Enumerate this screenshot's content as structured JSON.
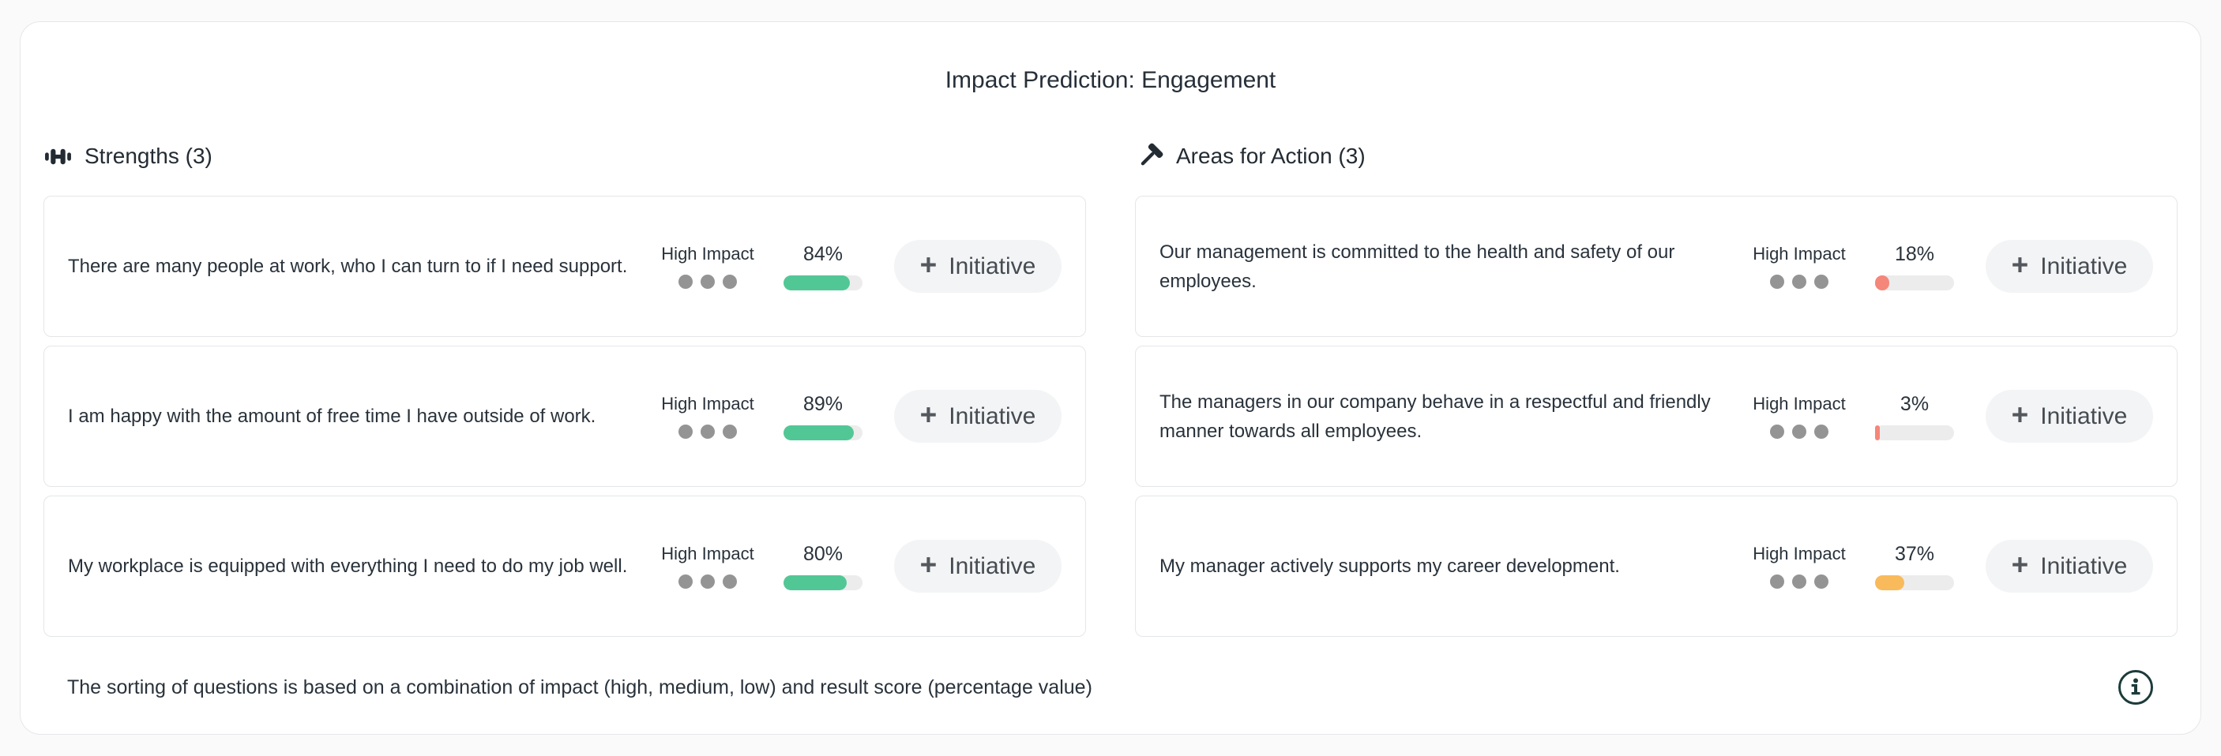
{
  "page": {
    "title": "Impact Prediction: Engagement",
    "footer_note": "The sorting of questions is based on a combination of impact (high, medium, low) and result score (percentage value)"
  },
  "ui": {
    "initiative_button_label": "Initiative",
    "plus_icon_glyph": "+"
  },
  "colors": {
    "positive_bar": "#52c796",
    "negative_bar": "#f5867a",
    "warning_bar": "#f9ba5b",
    "bar_track": "#ececec",
    "impact_dot": "#949494",
    "info_icon": "#1d3b3b"
  },
  "sections": [
    {
      "title": "Strengths (3)",
      "icon": "dumbbell-icon",
      "cards": [
        {
          "question": "There are many people at work, who I can turn to if I need support.",
          "impact_label": "High Impact",
          "impact_dots": 3,
          "score_percent": "84%",
          "score_value": 84,
          "bar_color": "#52c796"
        },
        {
          "question": "I am happy with the amount of free time I have outside of work.",
          "impact_label": "High Impact",
          "impact_dots": 3,
          "score_percent": "89%",
          "score_value": 89,
          "bar_color": "#52c796"
        },
        {
          "question": "My workplace is equipped with everything I need to do my job well.",
          "impact_label": "High Impact",
          "impact_dots": 3,
          "score_percent": "80%",
          "score_value": 80,
          "bar_color": "#52c796"
        }
      ]
    },
    {
      "title": "Areas for Action (3)",
      "icon": "hammer-icon",
      "cards": [
        {
          "question": "Our management is committed to the health and safety of our employees.",
          "impact_label": "High Impact",
          "impact_dots": 3,
          "score_percent": "18%",
          "score_value": 18,
          "bar_color": "#f5867a"
        },
        {
          "question": "The managers in our company behave in a respectful and friendly manner towards all employees.",
          "impact_label": "High Impact",
          "impact_dots": 3,
          "score_percent": "3%",
          "score_value": 3,
          "bar_color": "#f5867a"
        },
        {
          "question": "My manager actively supports my career development.",
          "impact_label": "High Impact",
          "impact_dots": 3,
          "score_percent": "37%",
          "score_value": 37,
          "bar_color": "#f9ba5b"
        }
      ]
    }
  ]
}
